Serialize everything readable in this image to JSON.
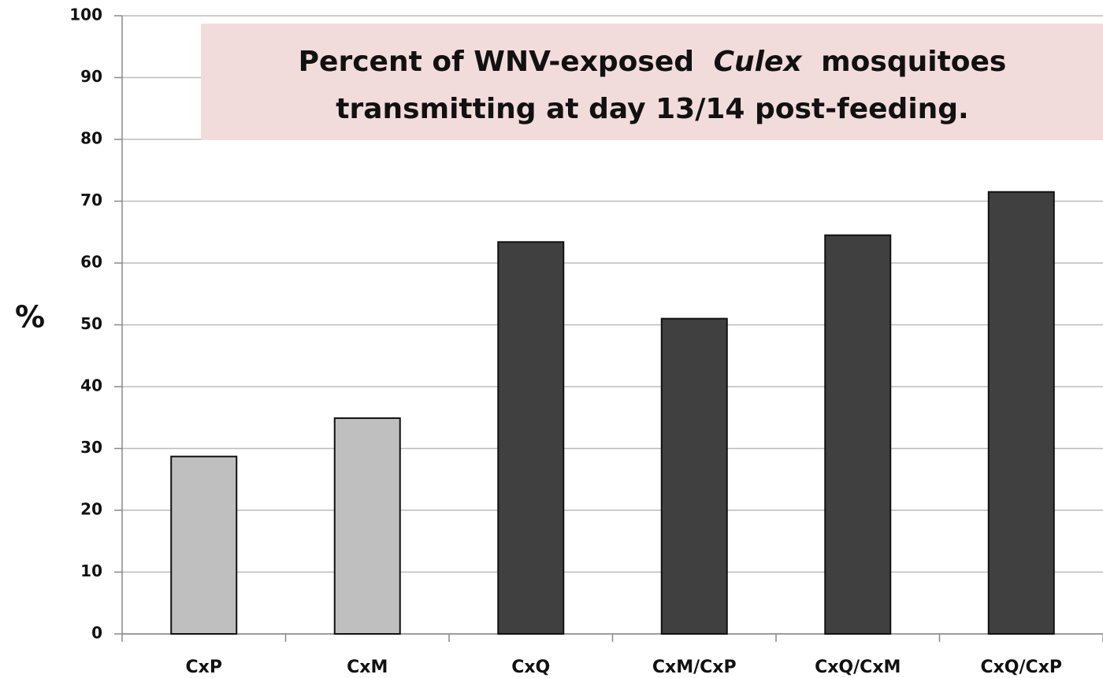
{
  "chart_data": {
    "type": "bar",
    "title": {
      "line1": [
        "Percent of WNV-exposed",
        "Culex",
        "mosquitoes"
      ],
      "line2": "transmitting at day 13/14 post-feeding."
    },
    "y_label": "%",
    "categories": [
      "CxP",
      "CxM",
      "CxQ",
      "CxM/CxP",
      "CxQ/CxM",
      "CxQ/CxP"
    ],
    "values": [
      28.7,
      34.9,
      63.4,
      51.0,
      64.5,
      71.5
    ],
    "colors": [
      "#bfbfbf",
      "#bfbfbf",
      "#404040",
      "#404040",
      "#404040",
      "#404040"
    ],
    "ylim": [
      0,
      100
    ],
    "yticks": [
      0,
      10,
      20,
      30,
      40,
      50,
      60,
      70,
      80,
      90,
      100
    ],
    "grid": true
  }
}
